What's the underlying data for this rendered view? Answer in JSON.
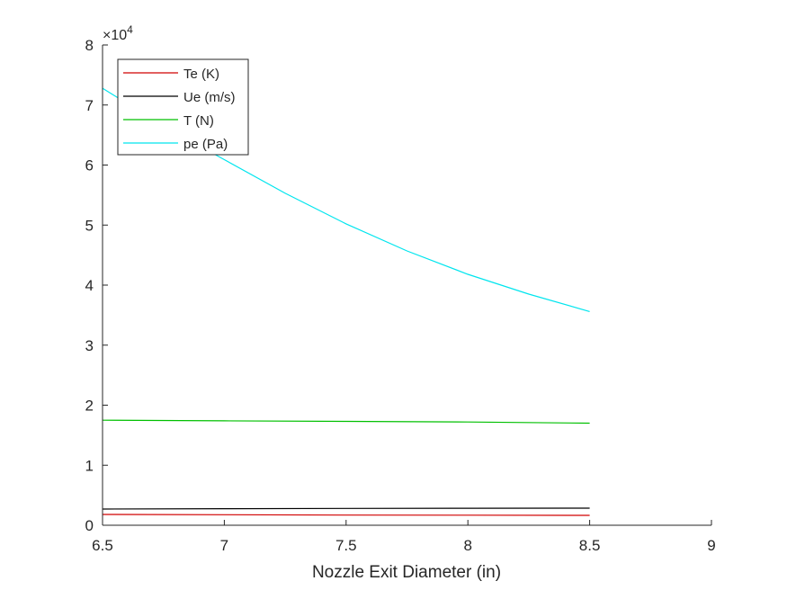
{
  "chart_data": {
    "type": "line",
    "title": "",
    "xlabel": "Nozzle Exit Diameter (in)",
    "ylabel": "",
    "y_exponent_label": "×10",
    "y_exponent_power": "4",
    "xlim": [
      6.5,
      9
    ],
    "ylim": [
      0,
      80000
    ],
    "xticks": [
      6.5,
      7,
      7.5,
      8,
      8.5,
      9
    ],
    "xtick_labels": [
      "6.5",
      "7",
      "7.5",
      "8",
      "8.5",
      "9"
    ],
    "yticks": [
      0,
      10000,
      20000,
      30000,
      40000,
      50000,
      60000,
      70000,
      80000
    ],
    "ytick_labels": [
      "0",
      "1",
      "2",
      "3",
      "4",
      "5",
      "6",
      "7",
      "8"
    ],
    "grid": false,
    "legend_position": "top-left",
    "series": [
      {
        "name": "Te (K)",
        "color": "#d00000",
        "x": [
          6.5,
          7,
          7.5,
          8,
          8.5
        ],
        "values": [
          1800,
          1750,
          1700,
          1680,
          1650
        ]
      },
      {
        "name": "Ue (m/s)",
        "color": "#000000",
        "x": [
          6.5,
          7,
          7.5,
          8,
          8.5
        ],
        "values": [
          2700,
          2750,
          2800,
          2830,
          2850
        ]
      },
      {
        "name": "T (N)",
        "color": "#00c000",
        "x": [
          6.5,
          7,
          7.5,
          8,
          8.5
        ],
        "values": [
          17500,
          17400,
          17300,
          17200,
          17000
        ]
      },
      {
        "name": "pe (Pa)",
        "color": "#00e5ee",
        "x": [
          6.5,
          6.75,
          7,
          7.25,
          7.5,
          7.75,
          8,
          8.25,
          8.5
        ],
        "values": [
          72800,
          66500,
          60900,
          55300,
          50200,
          45700,
          41800,
          38500,
          35600
        ]
      }
    ]
  }
}
